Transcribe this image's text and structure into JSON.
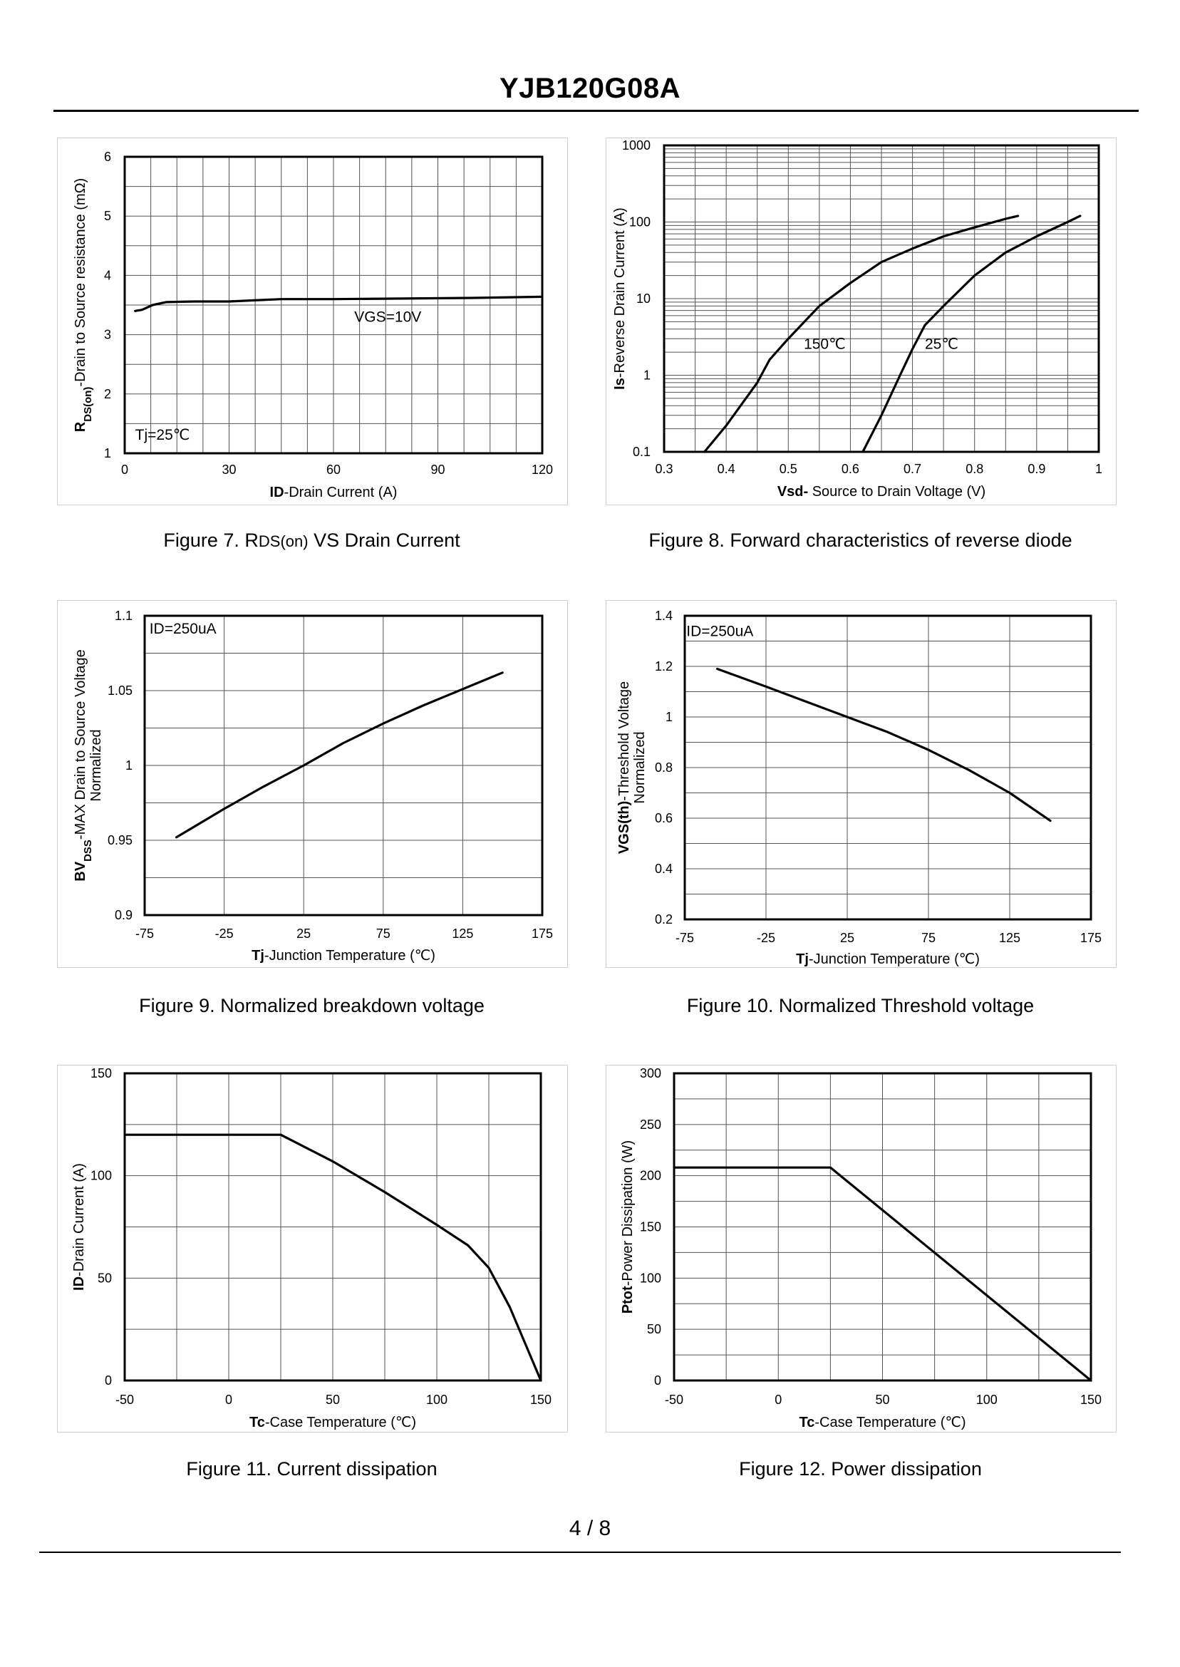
{
  "document": {
    "title": "YJB120G08A",
    "page": "4 / 8"
  },
  "figures": [
    {
      "id": "fig7",
      "caption_parts": [
        "Figure 7.  R",
        "DS(on)",
        " VS Drain Current"
      ],
      "caption": "Figure 7.  RDS(on) VS Drain Current"
    },
    {
      "id": "fig8",
      "caption": "Figure 8.  Forward characteristics of reverse diode"
    },
    {
      "id": "fig9",
      "caption": "Figure 9.  Normalized breakdown voltage"
    },
    {
      "id": "fig10",
      "caption": "Figure 10.  Normalized Threshold voltage"
    },
    {
      "id": "fig11",
      "caption": "Figure 11.  Current dissipation"
    },
    {
      "id": "fig12",
      "caption": "Figure 12.  Power dissipation"
    }
  ],
  "chart_data": [
    {
      "id": "fig7",
      "type": "line",
      "xlabel_parts": [
        [
          "ID",
          true
        ],
        [
          "-Drain Current (A)",
          false
        ]
      ],
      "ylabel_parts": [
        [
          "R",
          true
        ],
        [
          "DS(on)",
          true,
          "sub"
        ],
        [
          "-Drain to Source resistance (mΩ)",
          false
        ]
      ],
      "xlim": [
        0,
        120
      ],
      "ylim": [
        1,
        6
      ],
      "xticks": [
        0,
        30,
        60,
        90,
        120
      ],
      "xticklabels": [
        "0",
        "30",
        "60",
        "90",
        "120"
      ],
      "yticks": [
        1,
        2,
        3,
        4,
        5,
        6
      ],
      "yticklabels": [
        "1",
        "2",
        "3",
        "4",
        "5",
        "6"
      ],
      "xgrid": [
        0,
        7.5,
        15,
        22.5,
        30,
        37.5,
        45,
        52.5,
        60,
        67.5,
        75,
        82.5,
        90,
        97.5,
        105,
        112.5,
        120
      ],
      "ygrid": [
        1,
        1.5,
        2,
        2.5,
        3,
        3.5,
        4,
        4.5,
        5,
        5.5,
        6
      ],
      "series": [
        {
          "name": "VGS=10V",
          "x": [
            3,
            5,
            8,
            12,
            20,
            30,
            45,
            60,
            80,
            100,
            120
          ],
          "y": [
            3.4,
            3.42,
            3.5,
            3.55,
            3.56,
            3.56,
            3.6,
            3.6,
            3.61,
            3.62,
            3.64
          ]
        }
      ],
      "annotations": [
        {
          "text": "VGS=10V",
          "x": 66,
          "y": 3.22
        },
        {
          "text": "Tj=25℃",
          "x": 3,
          "y": 1.23
        }
      ]
    },
    {
      "id": "fig8",
      "type": "line",
      "yscale": "log",
      "xlabel_parts": [
        [
          "Vsd-",
          true
        ],
        [
          " Source to Drain Voltage (V)",
          false
        ]
      ],
      "ylabel_parts": [
        [
          "Is",
          true
        ],
        [
          "-Reverse  Drain Current (A)",
          false
        ]
      ],
      "xlim": [
        0.3,
        1
      ],
      "ylim": [
        0.1,
        1000
      ],
      "xticks": [
        0.3,
        0.4,
        0.5,
        0.6,
        0.7,
        0.8,
        0.9,
        1
      ],
      "xticklabels": [
        "0.3",
        "0.4",
        "0.5",
        "0.6",
        "0.7",
        "0.8",
        "0.9",
        "1"
      ],
      "yticks": [
        0.1,
        1,
        10,
        100,
        1000
      ],
      "yticklabels": [
        "0.1",
        "1",
        "10",
        "100",
        "1000"
      ],
      "xgrid": [
        0.3,
        0.35,
        0.4,
        0.45,
        0.5,
        0.55,
        0.6,
        0.65,
        0.7,
        0.75,
        0.8,
        0.85,
        0.9,
        0.95,
        1
      ],
      "ygrid": [
        0.1,
        0.2,
        0.3,
        0.4,
        0.5,
        0.6,
        0.7,
        0.8,
        0.9,
        1,
        2,
        3,
        4,
        5,
        6,
        7,
        8,
        9,
        10,
        20,
        30,
        40,
        50,
        60,
        70,
        80,
        90,
        100,
        200,
        300,
        400,
        500,
        600,
        700,
        800,
        900,
        1000
      ],
      "series": [
        {
          "name": "150℃",
          "x": [
            0.365,
            0.4,
            0.45,
            0.47,
            0.5,
            0.55,
            0.6,
            0.65,
            0.7,
            0.75,
            0.8,
            0.85,
            0.87
          ],
          "y": [
            0.1,
            0.22,
            0.8,
            1.6,
            3,
            8,
            16,
            30,
            45,
            65,
            85,
            110,
            120
          ]
        },
        {
          "name": "25℃",
          "x": [
            0.62,
            0.65,
            0.68,
            0.7,
            0.72,
            0.75,
            0.8,
            0.85,
            0.9,
            0.95,
            0.97
          ],
          "y": [
            0.1,
            0.3,
            1,
            2.2,
            4.5,
            8,
            20,
            40,
            65,
            100,
            120
          ]
        }
      ],
      "annotations": [
        {
          "text": "150℃",
          "x": 0.525,
          "y": 2.2
        },
        {
          "text": "25℃",
          "x": 0.72,
          "y": 2.2
        }
      ]
    },
    {
      "id": "fig9",
      "type": "line",
      "xlabel_parts": [
        [
          "Tj",
          true
        ],
        [
          "-Junction  Temperature (℃)",
          false
        ]
      ],
      "ylabel_parts": [
        [
          "BV",
          true
        ],
        [
          "DSS",
          true,
          "sub"
        ],
        [
          "-MAX Drain to Source Voltage",
          false
        ]
      ],
      "ylabel2": "Normalized",
      "xlim": [
        -75,
        175
      ],
      "ylim": [
        0.9,
        1.1
      ],
      "xticks": [
        -75,
        -25,
        25,
        75,
        125,
        175
      ],
      "xticklabels": [
        "-75",
        "-25",
        "25",
        "75",
        "125",
        "175"
      ],
      "yticks": [
        0.9,
        0.95,
        1,
        1.05,
        1.1
      ],
      "yticklabels": [
        "0.9",
        "0.95",
        "1",
        "1.05",
        "1.1"
      ],
      "xgrid": [
        -75,
        -25,
        25,
        75,
        125,
        175
      ],
      "ygrid": [
        0.9,
        0.925,
        0.95,
        0.975,
        1,
        1.025,
        1.05,
        1.075,
        1.1
      ],
      "series": [
        {
          "name": "BVDSS",
          "x": [
            -55,
            -25,
            0,
            25,
            50,
            75,
            100,
            125,
            150
          ],
          "y": [
            0.952,
            0.971,
            0.986,
            1.0,
            1.015,
            1.028,
            1.04,
            1.051,
            1.062
          ]
        }
      ],
      "annotations": [
        {
          "text": "ID=250uA",
          "x": -72,
          "y": 1.088
        }
      ]
    },
    {
      "id": "fig10",
      "type": "line",
      "xlabel_parts": [
        [
          "Tj",
          true
        ],
        [
          "-Junction  Temperature (℃)",
          false
        ]
      ],
      "ylabel_parts": [
        [
          "VGS(th)",
          true
        ],
        [
          "-Threshold  Voltage",
          false
        ]
      ],
      "ylabel2": "Normalized",
      "xlim": [
        -75,
        175
      ],
      "ylim": [
        0.2,
        1.4
      ],
      "xticks": [
        -75,
        -25,
        25,
        75,
        125,
        175
      ],
      "xticklabels": [
        "-75",
        "-25",
        "25",
        "75",
        "125",
        "175"
      ],
      "yticks": [
        0.2,
        0.4,
        0.6,
        0.8,
        1,
        1.2,
        1.4
      ],
      "yticklabels": [
        "0.2",
        "0.4",
        "0.6",
        "0.8",
        "1",
        "1.2",
        "1.4"
      ],
      "xgrid": [
        -75,
        -25,
        25,
        75,
        125,
        175
      ],
      "ygrid": [
        0.2,
        0.3,
        0.4,
        0.5,
        0.6,
        0.7,
        0.8,
        0.9,
        1,
        1.1,
        1.2,
        1.3,
        1.4
      ],
      "series": [
        {
          "name": "VGS(th)",
          "x": [
            -55,
            -25,
            0,
            25,
            50,
            75,
            100,
            125,
            150
          ],
          "y": [
            1.19,
            1.12,
            1.06,
            1.0,
            0.94,
            0.87,
            0.79,
            0.7,
            0.59
          ]
        }
      ],
      "annotations": [
        {
          "text": "ID=250uA",
          "x": -74,
          "y": 1.32
        }
      ]
    },
    {
      "id": "fig11",
      "type": "line",
      "xlabel_parts": [
        [
          "Tc",
          true
        ],
        [
          "-Case Temperature (℃)",
          false
        ]
      ],
      "ylabel_parts": [
        [
          "ID",
          true
        ],
        [
          "-Drain Current (A)",
          false
        ]
      ],
      "xlim": [
        -50,
        150
      ],
      "ylim": [
        0,
        150
      ],
      "xticks": [
        -50,
        0,
        50,
        100,
        150
      ],
      "xticklabels": [
        "-50",
        "0",
        "50",
        "100",
        "150"
      ],
      "yticks": [
        0,
        50,
        100,
        150
      ],
      "yticklabels": [
        "0",
        "50",
        "100",
        "150"
      ],
      "xgrid": [
        -50,
        -25,
        0,
        25,
        50,
        75,
        100,
        125,
        150
      ],
      "ygrid": [
        0,
        25,
        50,
        75,
        100,
        125,
        150
      ],
      "series": [
        {
          "name": "ID",
          "x": [
            -50,
            25,
            50,
            75,
            100,
            115,
            125,
            135,
            150
          ],
          "y": [
            120,
            120,
            107,
            92,
            76,
            66,
            55,
            36,
            0
          ]
        }
      ],
      "annotations": []
    },
    {
      "id": "fig12",
      "type": "line",
      "xlabel_parts": [
        [
          "Tc",
          true
        ],
        [
          "-Case Temperature (℃)",
          false
        ]
      ],
      "ylabel_parts": [
        [
          "Ptot",
          true
        ],
        [
          "-Power Dissipation (W)",
          false
        ]
      ],
      "xlim": [
        -50,
        150
      ],
      "ylim": [
        0,
        300
      ],
      "xticks": [
        -50,
        0,
        50,
        100,
        150
      ],
      "xticklabels": [
        "-50",
        "0",
        "50",
        "100",
        "150"
      ],
      "yticks": [
        0,
        50,
        100,
        150,
        200,
        250,
        300
      ],
      "yticklabels": [
        "0",
        "50",
        "100",
        "150",
        "200",
        "250",
        "300"
      ],
      "xgrid": [
        -50,
        -25,
        0,
        25,
        50,
        75,
        100,
        125,
        150
      ],
      "ygrid": [
        0,
        25,
        50,
        75,
        100,
        125,
        150,
        175,
        200,
        225,
        250,
        275,
        300
      ],
      "series": [
        {
          "name": "Ptot",
          "x": [
            -50,
            25,
            150
          ],
          "y": [
            208,
            208,
            0
          ]
        }
      ],
      "annotations": []
    }
  ]
}
